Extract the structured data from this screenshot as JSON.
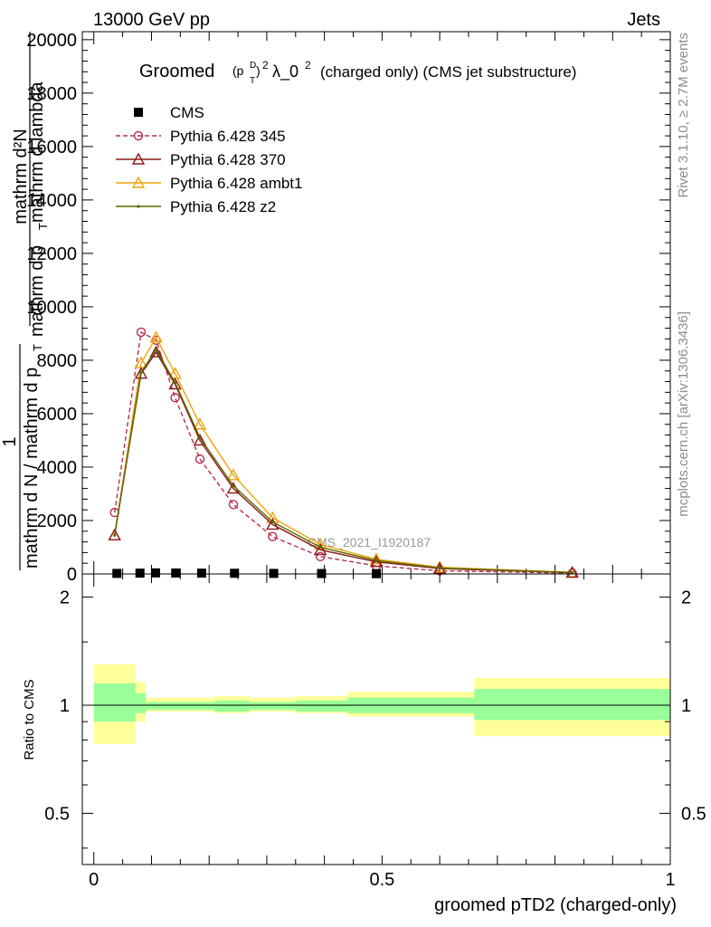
{
  "header": {
    "left": "13000 GeV pp",
    "right": "Jets"
  },
  "side_labels": {
    "rivet": "Rivet 3.1.10, ≥ 2.7M events",
    "mcplots": "mcplots.cern.ch [arXiv:1306.3436]"
  },
  "watermark": "CMS_2021_I1920187",
  "chart_data": [
    {
      "type": "line",
      "title_main": "Groomed",
      "title_formula": "(p",
      "title_sup_D": "D",
      "title_sub_T": "T",
      "title_close": ")",
      "title_sup_2": "2",
      "title_lambda": "λ_0",
      "title_rest": "(charged only) (CMS jet substructure)",
      "ylabel_top": "mathrm d²N",
      "ylabel_bottom": "mathrm d p",
      "ylabel_sub": "T",
      "ylabel_bottom2": "mathrm d lambda",
      "ylabel_frac_num": "1",
      "ylabel_frac_den": "mathrm d N / mathrm d p",
      "ylabel_frac_den_sub": "T",
      "ylim": [
        0,
        20300
      ],
      "yticks": [
        0,
        2000,
        4000,
        6000,
        8000,
        10000,
        12000,
        14000,
        16000,
        18000,
        20000
      ],
      "ytick_labels": [
        "0",
        "2000",
        "4000",
        "6000",
        "8000",
        "10000",
        "12000",
        "14000",
        "16000",
        "18000",
        "20000"
      ],
      "xlim": [
        -0.02,
        1.0
      ],
      "legend_position": "top-left",
      "series": [
        {
          "name": "CMS",
          "color": "#000000",
          "marker": "square",
          "x": [
            0.04,
            0.08,
            0.107,
            0.142,
            0.187,
            0.244,
            0.312,
            0.395,
            0.49
          ],
          "y": [
            20,
            30,
            40,
            35,
            30,
            25,
            20,
            15,
            10
          ]
        },
        {
          "name": "Pythia 6.428 345",
          "color": "#b5304f",
          "marker": "circle",
          "dashed": true,
          "x": [
            0.036,
            0.082,
            0.108,
            0.141,
            0.184,
            0.242,
            0.31,
            0.393,
            0.49,
            0.6,
            0.83
          ],
          "y": [
            2300,
            9050,
            8750,
            6600,
            4300,
            2600,
            1400,
            650,
            300,
            120,
            30
          ]
        },
        {
          "name": "Pythia 6.428 370",
          "color": "#8b1a1a",
          "marker": "triangle",
          "x": [
            0.036,
            0.082,
            0.108,
            0.141,
            0.184,
            0.242,
            0.31,
            0.393,
            0.49,
            0.6,
            0.83
          ],
          "y": [
            1450,
            7500,
            8300,
            7100,
            5000,
            3200,
            1850,
            900,
            450,
            200,
            50
          ]
        },
        {
          "name": "Pythia 6.428 ambt1",
          "color": "#f0a30a",
          "marker": "triangle",
          "x": [
            0.036,
            0.082,
            0.108,
            0.141,
            0.184,
            0.242,
            0.31,
            0.393,
            0.49,
            0.6,
            0.83
          ],
          "y": [
            1450,
            7900,
            8850,
            7500,
            5600,
            3700,
            2100,
            1100,
            550,
            250,
            60
          ]
        },
        {
          "name": "Pythia 6.428 z2",
          "color": "#5a6a00",
          "marker": "dot",
          "x": [
            0.036,
            0.082,
            0.108,
            0.141,
            0.184,
            0.242,
            0.31,
            0.393,
            0.49,
            0.6,
            0.83
          ],
          "y": [
            1450,
            7550,
            8400,
            7150,
            5100,
            3300,
            1950,
            1000,
            500,
            220,
            55
          ]
        }
      ]
    },
    {
      "type": "area",
      "ylabel": "Ratio to CMS",
      "xlabel": "groomed pTD2 (charged-only)",
      "ylim": [
        0.36,
        2.32
      ],
      "yticks": [
        0.5,
        1,
        2
      ],
      "ytick_labels": [
        "0.5",
        "1",
        "2"
      ],
      "xlim": [
        -0.02,
        1.0
      ],
      "xticks": [
        0,
        0.5,
        1
      ],
      "xtick_labels": [
        "0",
        "0.5",
        "1"
      ],
      "bins": [
        {
          "x0": 0.0,
          "x1": 0.072,
          "stat_lo": 0.9,
          "stat_hi": 1.15,
          "tot_lo": 0.78,
          "tot_hi": 1.3
        },
        {
          "x0": 0.072,
          "x1": 0.09,
          "stat_lo": 0.95,
          "stat_hi": 1.08,
          "tot_lo": 0.9,
          "tot_hi": 1.16
        },
        {
          "x0": 0.09,
          "x1": 0.21,
          "stat_lo": 0.97,
          "stat_hi": 1.02,
          "tot_lo": 0.96,
          "tot_hi": 1.05
        },
        {
          "x0": 0.21,
          "x1": 0.27,
          "stat_lo": 0.96,
          "stat_hi": 1.03,
          "tot_lo": 0.95,
          "tot_hi": 1.06
        },
        {
          "x0": 0.27,
          "x1": 0.35,
          "stat_lo": 0.97,
          "stat_hi": 1.02,
          "tot_lo": 0.96,
          "tot_hi": 1.05
        },
        {
          "x0": 0.35,
          "x1": 0.44,
          "stat_lo": 0.96,
          "stat_hi": 1.03,
          "tot_lo": 0.95,
          "tot_hi": 1.06
        },
        {
          "x0": 0.44,
          "x1": 0.66,
          "stat_lo": 0.95,
          "stat_hi": 1.05,
          "tot_lo": 0.93,
          "tot_hi": 1.09
        },
        {
          "x0": 0.66,
          "x1": 1.0,
          "stat_lo": 0.91,
          "stat_hi": 1.11,
          "tot_lo": 0.82,
          "tot_hi": 1.19
        }
      ],
      "colors": {
        "stat": "#99ff99",
        "total": "#ffff99"
      }
    }
  ]
}
